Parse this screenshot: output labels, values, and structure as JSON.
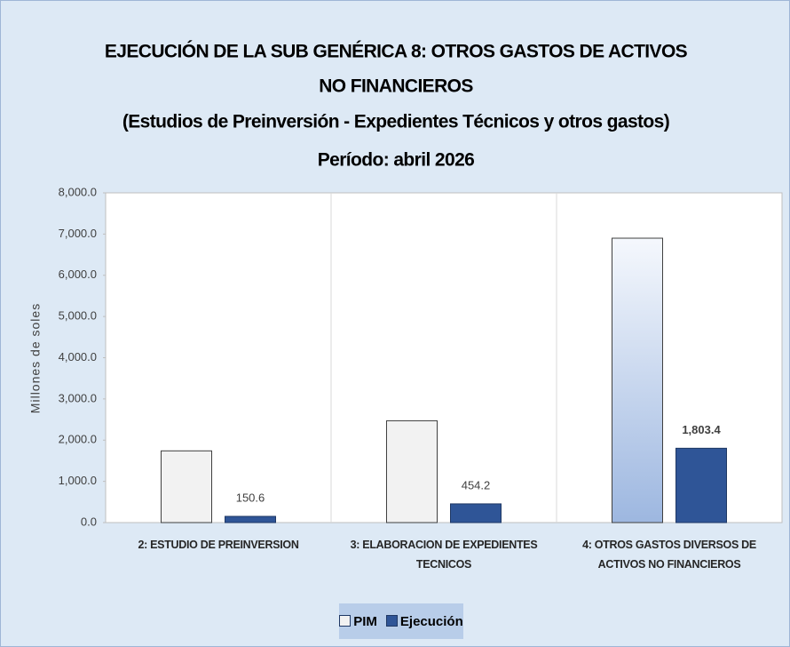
{
  "chart_data": {
    "type": "bar",
    "title": [
      "EJECUCIÓN DE LA SUB GENÉRICA 8: OTROS GASTOS DE ACTIVOS",
      "NO FINANCIEROS"
    ],
    "subtitle": "(Estudios de Preinversión - Expedientes Técnicos y otros gastos)",
    "period": "Período:   abril 2026",
    "y_label": "Millones de soles",
    "categories": [
      "2: ESTUDIO DE PREINVERSION",
      "3: ELABORACION DE EXPEDIENTES TECNICOS",
      "4: OTROS GASTOS DIVERSOS DE ACTIVOS NO FINANCIEROS"
    ],
    "series": [
      {
        "name": "PIM",
        "color": "#f2f2f2",
        "colors": [
          "#f2f2f2",
          "#f2f2f2",
          "#b9cdec"
        ],
        "values": [
          1740,
          2470,
          6900
        ]
      },
      {
        "name": "Ejecución",
        "color": "#2f5597",
        "values": [
          150.6,
          454.2,
          1803.4
        ],
        "value_labels": [
          "150.6",
          "454.2",
          "1,803.4"
        ]
      }
    ],
    "ylim": [
      0,
      8000
    ],
    "yticks": [
      {
        "value": 0,
        "label": "0.0"
      },
      {
        "value": 1000,
        "label": "1,000.0"
      },
      {
        "value": 2000,
        "label": "2,000.0"
      },
      {
        "value": 3000,
        "label": "3,000.0"
      },
      {
        "value": 4000,
        "label": "4,000.0"
      },
      {
        "value": 5000,
        "label": "5,000.0"
      },
      {
        "value": 6000,
        "label": "6,000.0"
      },
      {
        "value": 7000,
        "label": "7,000.0"
      },
      {
        "value": 8000,
        "label": "8,000.0"
      }
    ],
    "grid": false,
    "legend": "bottom"
  }
}
